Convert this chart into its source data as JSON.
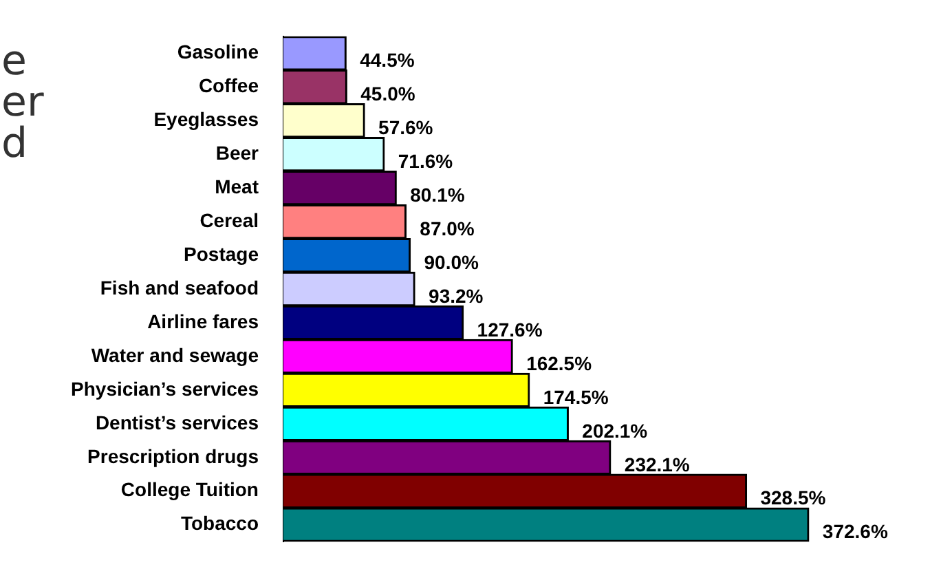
{
  "chart_data": {
    "type": "bar",
    "orientation": "horizontal",
    "categories": [
      "Gasoline",
      "Coffee",
      "Eyeglasses",
      "Beer",
      "Meat",
      "Cereal",
      "Postage",
      "Fish and seafood",
      "Airline fares",
      "Water and sewage",
      "Physician’s services",
      "Dentist’s services",
      "Prescription drugs",
      "College Tuition",
      "Tobacco"
    ],
    "values": [
      44.5,
      45.0,
      57.6,
      71.6,
      80.1,
      87.0,
      90.0,
      93.2,
      127.6,
      162.5,
      174.5,
      202.1,
      232.1,
      328.5,
      372.6
    ],
    "value_labels": [
      "44.5%",
      "45.0%",
      "57.6%",
      "71.6%",
      "80.1%",
      "87.0%",
      "90.0%",
      "93.2%",
      "127.6%",
      "162.5%",
      "174.5%",
      "202.1%",
      "232.1%",
      "328.5%",
      "372.6%"
    ],
    "colors": [
      "#9999ff",
      "#993366",
      "#ffffcc",
      "#ccffff",
      "#660066",
      "#ff8080",
      "#0066cc",
      "#ccccff",
      "#000080",
      "#ff00ff",
      "#ffff00",
      "#00ffff",
      "#800080",
      "#800000",
      "#008080"
    ],
    "annotations": [
      "e",
      "er",
      "d"
    ],
    "legend": false
  }
}
